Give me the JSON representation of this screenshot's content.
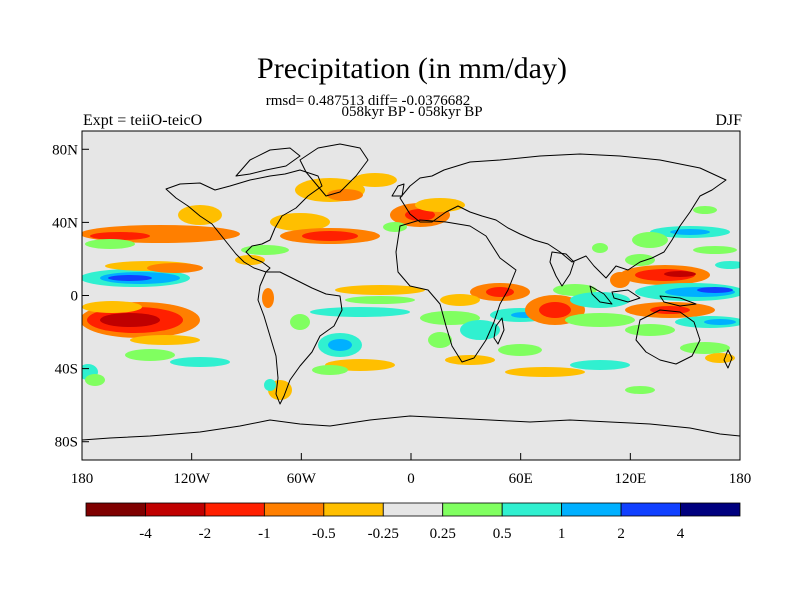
{
  "map": {
    "title": "Precipitation (in mm/day)",
    "stats_line": "rmsd= 0.487513 diff= -0.0376682",
    "subtitle": "058kyr BP - 058kyr BP",
    "left_label": "Expt = teiiO-teicO",
    "right_label": "DJF",
    "land_color": "#e6e6e6",
    "lat_ticks": [
      {
        "lat": 80,
        "label": "80N"
      },
      {
        "lat": 40,
        "label": "40N"
      },
      {
        "lat": 0,
        "label": "0"
      },
      {
        "lat": -40,
        "label": "40S"
      },
      {
        "lat": -80,
        "label": "80S"
      }
    ],
    "lon_ticks": [
      {
        "lon": -180,
        "label": "180"
      },
      {
        "lon": -120,
        "label": "120W"
      },
      {
        "lon": -60,
        "label": "60W"
      },
      {
        "lon": 0,
        "label": "0"
      },
      {
        "lon": 60,
        "label": "60E"
      },
      {
        "lon": 120,
        "label": "120E"
      },
      {
        "lon": 180,
        "label": "180"
      }
    ]
  },
  "colorbar": {
    "colors": [
      "#7f0000",
      "#c00000",
      "#ff2000",
      "#ff7f00",
      "#ffbf00",
      "#e6e6e6",
      "#80ff60",
      "#30f0d0",
      "#00b0ff",
      "#1040ff",
      "#00007f"
    ],
    "labels": [
      "-4",
      "-2",
      "-1",
      "-0.5",
      "-0.25",
      "0.25",
      "0.5",
      "1",
      "2",
      "4"
    ]
  }
}
